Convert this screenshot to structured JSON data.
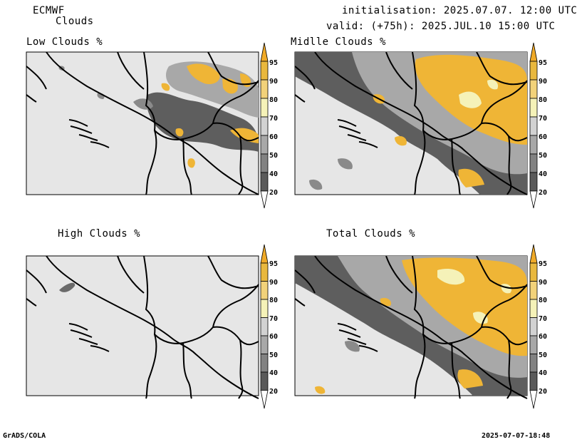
{
  "header": {
    "model": "ECMWF",
    "product": "Clouds",
    "init": "initialisation: 2025.07.07. 12:00 UTC",
    "valid": "valid: (+75h): 2025.JUL.10 15:00 UTC"
  },
  "panels": [
    {
      "title": "Low Clouds %"
    },
    {
      "title": "Midlle Clouds %"
    },
    {
      "title": "High Clouds %"
    },
    {
      "title": "Total Clouds %"
    }
  ],
  "legend": {
    "levels": [
      "20",
      "40",
      "50",
      "60",
      "70",
      "80",
      "90",
      "95"
    ],
    "colors": [
      "#ffffff",
      "#5a5a5a",
      "#828282",
      "#a8a8a8",
      "#d2d2d2",
      "#f5f2b8",
      "#f2d27a",
      "#e9b83e",
      "#f0aa28"
    ]
  },
  "footer": {
    "left": "GrADS/COLA",
    "right": "2025-07-07-18:48"
  }
}
